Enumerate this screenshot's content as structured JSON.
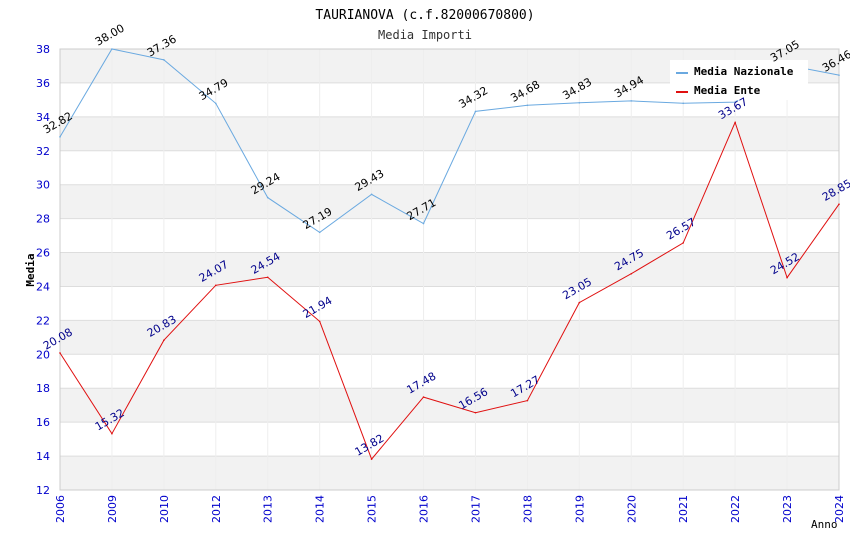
{
  "chart_data": {
    "type": "line",
    "title": "TAURIANOVA (c.f.82000670800)",
    "subtitle": "Media Importi",
    "xlabel": "Anno",
    "ylabel": "Media",
    "ylim": [
      12,
      38
    ],
    "y_ticks": [
      "12",
      "14",
      "16",
      "18",
      "20",
      "22",
      "24",
      "26",
      "28",
      "30",
      "32",
      "34",
      "36",
      "38"
    ],
    "categories": [
      "2006",
      "2009",
      "2010",
      "2012",
      "2013",
      "2014",
      "2015",
      "2016",
      "2017",
      "2018",
      "2019",
      "2020",
      "2021",
      "2022",
      "2023",
      "2024"
    ],
    "series": [
      {
        "name": "Media Nazionale",
        "color": "#6aa9e0",
        "label_color": "#000000",
        "values": [
          32.82,
          38.0,
          37.36,
          34.79,
          29.24,
          27.19,
          29.43,
          27.71,
          34.32,
          34.68,
          34.83,
          34.94,
          34.8,
          34.87,
          37.05,
          36.46
        ],
        "labels": [
          "32.82",
          "38.00",
          "37.36",
          "34.79",
          "29.24",
          "27.19",
          "29.43",
          "27.71",
          "34.32",
          "34.68",
          "34.83",
          "34.94",
          "",
          "",
          "37.05",
          "36.46"
        ]
      },
      {
        "name": "Media Ente",
        "color": "#e01010",
        "label_color": "#00008b",
        "values": [
          20.08,
          15.32,
          20.83,
          24.07,
          24.54,
          21.94,
          13.82,
          17.48,
          16.56,
          17.27,
          23.05,
          24.75,
          26.57,
          33.67,
          24.52,
          28.85
        ],
        "labels": [
          "20.08",
          "15.32",
          "20.83",
          "24.07",
          "24.54",
          "21.94",
          "13.82",
          "17.48",
          "16.56",
          "17.27",
          "23.05",
          "24.75",
          "26.57",
          "33.67",
          "24.52",
          "28.85"
        ]
      }
    ],
    "legend_position": "top-right"
  }
}
